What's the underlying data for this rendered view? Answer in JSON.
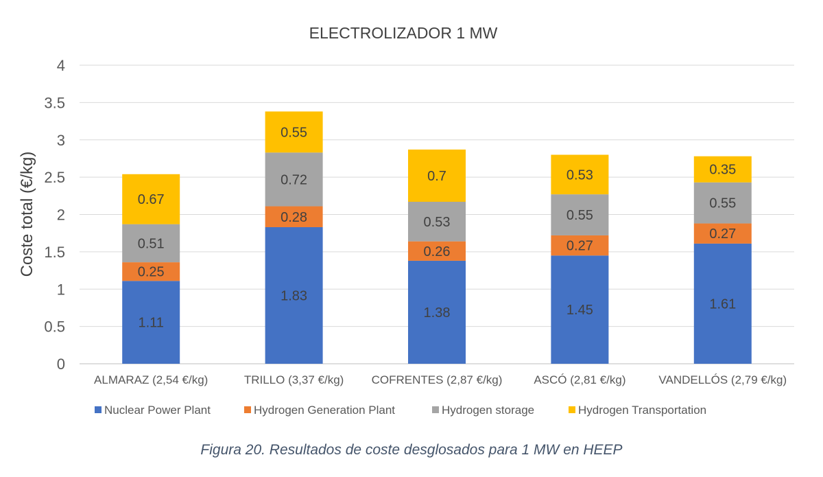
{
  "caption": "Figura 20. Resultados de coste desglosados para 1 MW en HEEP",
  "chart_data": {
    "type": "bar",
    "stacked": true,
    "title": "ELECTROLIZADOR 1 MW",
    "xlabel": "",
    "ylabel": "Coste total (€/kg)",
    "ylim": [
      0,
      4
    ],
    "yticks": [
      "0",
      "0.5",
      "1",
      "1.5",
      "2",
      "2.5",
      "3",
      "3.5",
      "4"
    ],
    "grid": true,
    "legend_position": "bottom",
    "categories": [
      "ALMARAZ (2,54 €/kg)",
      "TRILLO (3,37 €/kg)",
      "COFRENTES (2,87 €/kg)",
      "ASCÓ (2,81 €/kg)",
      "VANDELLÓS (2,79 €/kg)"
    ],
    "series": [
      {
        "name": "Nuclear Power Plant",
        "color": "#4472C4",
        "values": [
          1.11,
          1.83,
          1.38,
          1.45,
          1.61
        ]
      },
      {
        "name": "Hydrogen Generation Plant",
        "color": "#ED7D31",
        "values": [
          0.25,
          0.28,
          0.26,
          0.27,
          0.27
        ]
      },
      {
        "name": "Hydrogen storage",
        "color": "#A5A5A5",
        "values": [
          0.51,
          0.72,
          0.53,
          0.55,
          0.55
        ]
      },
      {
        "name": "Hydrogen Transportation",
        "color": "#FFC000",
        "values": [
          0.67,
          0.55,
          0.7,
          0.53,
          0.35
        ]
      }
    ]
  }
}
